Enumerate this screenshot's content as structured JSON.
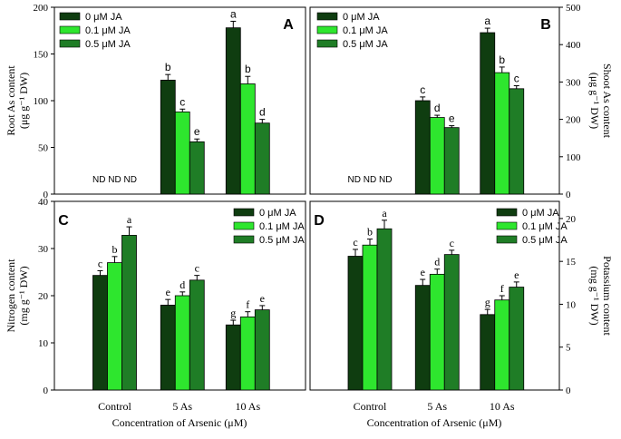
{
  "figure": {
    "colors": {
      "0 µM JA": "#0f3d10",
      "0.1 µM JA": "#2ee62e",
      "0.5 µM JA": "#1f7d26"
    },
    "shared_xlabel": "Concentration of Arsenic (μM)"
  },
  "chart_data": [
    {
      "type": "bar",
      "panel_letter": "A",
      "categories": [
        "Control",
        "5 As",
        "10 As"
      ],
      "series": [
        {
          "name": "0 μM JA",
          "values": [
            null,
            122,
            178
          ],
          "errors": [
            null,
            6,
            7
          ]
        },
        {
          "name": "0.1 μM JA",
          "values": [
            null,
            88,
            118
          ],
          "errors": [
            null,
            3,
            8
          ]
        },
        {
          "name": "0.5 μM JA",
          "values": [
            null,
            56,
            76
          ],
          "errors": [
            null,
            3,
            4
          ]
        }
      ],
      "letters": [
        [
          null,
          "b",
          "a"
        ],
        [
          null,
          "c",
          "b"
        ],
        [
          null,
          "e",
          "d"
        ]
      ],
      "nd_text": "ND ND ND",
      "ylabel": "Root As content\n(μg g⁻¹ DW)",
      "ylim": [
        0,
        200
      ],
      "yticks": [
        0,
        50,
        100,
        150,
        200
      ],
      "legend": "top-left",
      "show_xticklabels": false
    },
    {
      "type": "bar",
      "panel_letter": "B",
      "categories": [
        "Control",
        "5 As",
        "10 As"
      ],
      "series": [
        {
          "name": "0 μM JA",
          "values": [
            null,
            250,
            432
          ],
          "errors": [
            null,
            10,
            12
          ]
        },
        {
          "name": "0.1 μM JA",
          "values": [
            null,
            205,
            325
          ],
          "errors": [
            null,
            6,
            15
          ]
        },
        {
          "name": "0.5 μM JA",
          "values": [
            null,
            178,
            282
          ],
          "errors": [
            null,
            5,
            8
          ]
        }
      ],
      "letters": [
        [
          null,
          "c",
          "a"
        ],
        [
          null,
          "d",
          "b"
        ],
        [
          null,
          "e",
          "c"
        ]
      ],
      "nd_text": "ND ND ND",
      "ylabel": "Shoot As content\n(μg g⁻¹ DW)",
      "ylim": [
        0,
        500
      ],
      "yticks": [
        0,
        100,
        200,
        300,
        400,
        500
      ],
      "legend": "top-left",
      "show_xticklabels": false
    },
    {
      "type": "bar",
      "panel_letter": "C",
      "categories": [
        "Control",
        "5 As",
        "10 As"
      ],
      "series": [
        {
          "name": "0 μM JA",
          "values": [
            24.3,
            18.0,
            13.8
          ],
          "errors": [
            1.0,
            1.2,
            1.0
          ]
        },
        {
          "name": "0.1 μM JA",
          "values": [
            27.0,
            20.0,
            15.5
          ],
          "errors": [
            1.3,
            0.8,
            1.1
          ]
        },
        {
          "name": "0.5 μM JA",
          "values": [
            32.8,
            23.3,
            17.0
          ],
          "errors": [
            1.8,
            1.0,
            0.9
          ]
        }
      ],
      "letters": [
        [
          "c",
          "e",
          "g"
        ],
        [
          "b",
          "d",
          "f"
        ],
        [
          "a",
          "c",
          "e"
        ]
      ],
      "ylabel": "Nitrogen content\n(mg g⁻¹ DW)",
      "ylim": [
        0,
        40
      ],
      "yticks": [
        0,
        10,
        20,
        30,
        40
      ],
      "legend": "top-right",
      "show_xticklabels": true
    },
    {
      "type": "bar",
      "panel_letter": "D",
      "categories": [
        "Control",
        "5 As",
        "10 As"
      ],
      "series": [
        {
          "name": "0 μM JA",
          "values": [
            15.6,
            12.2,
            8.8
          ],
          "errors": [
            0.8,
            0.7,
            0.6
          ]
        },
        {
          "name": "0.1 μM JA",
          "values": [
            16.9,
            13.5,
            10.5
          ],
          "errors": [
            0.7,
            0.6,
            0.5
          ]
        },
        {
          "name": "0.5 μM JA",
          "values": [
            18.8,
            15.8,
            12.0
          ],
          "errors": [
            1.0,
            0.5,
            0.6
          ]
        }
      ],
      "letters": [
        [
          "c",
          "e",
          "g"
        ],
        [
          "b",
          "d",
          "f"
        ],
        [
          "a",
          "c",
          "e"
        ]
      ],
      "ylabel": "Potassium content\n(mg g⁻¹ DW)",
      "ylim": [
        0,
        22
      ],
      "yticks": [
        0,
        5,
        10,
        15,
        20
      ],
      "legend": "top-right",
      "show_xticklabels": true
    }
  ]
}
